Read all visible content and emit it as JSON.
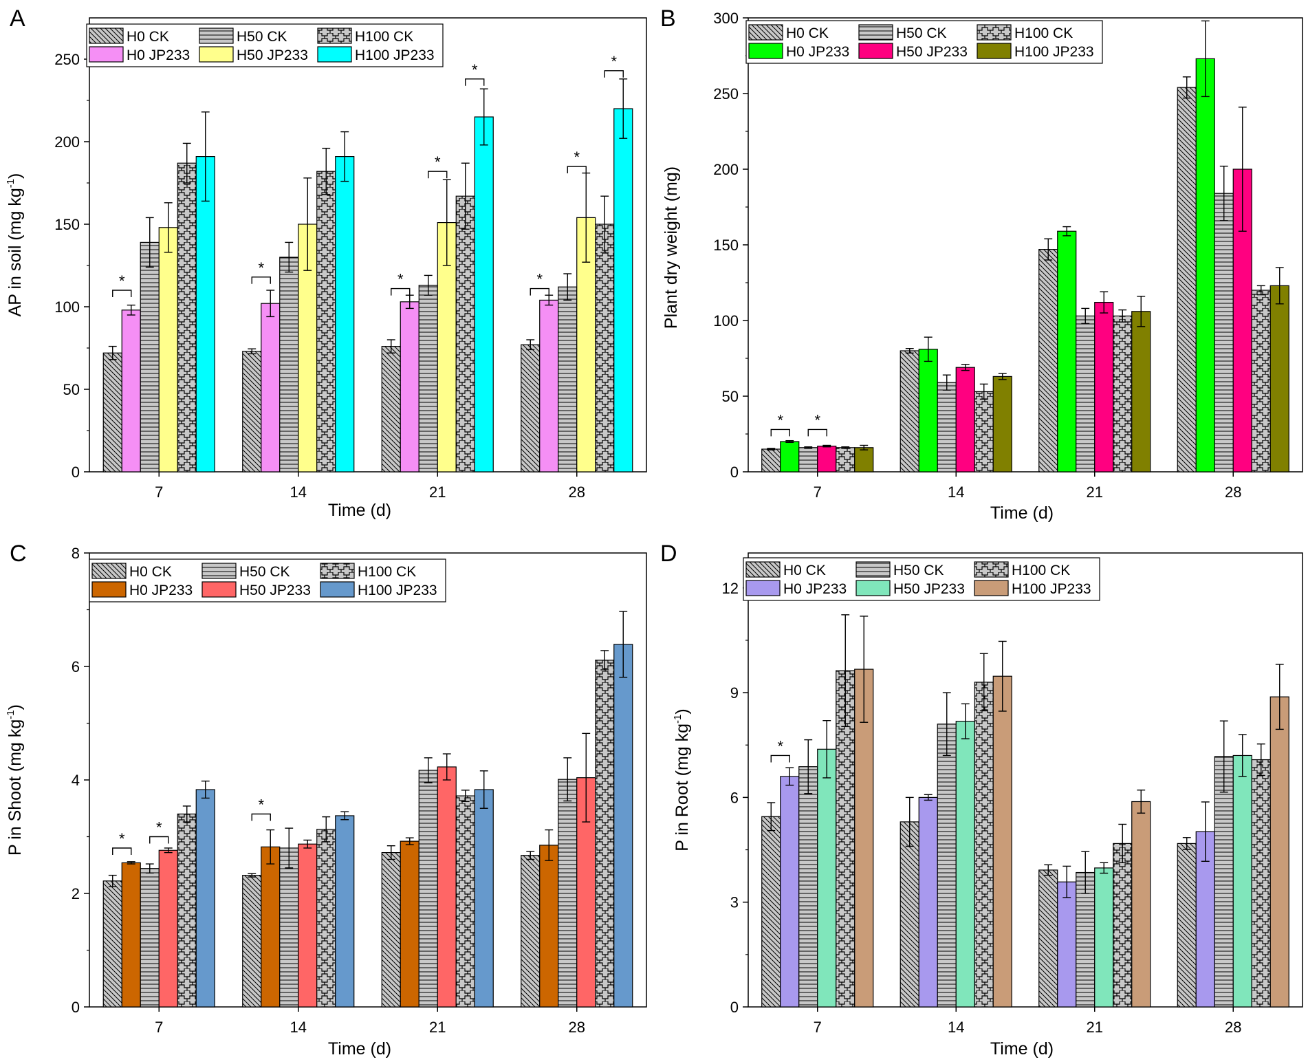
{
  "figure": {
    "legend_labels": [
      "H0 CK",
      "H50 CK",
      "H100 CK",
      "H0 JP233",
      "H50 JP233",
      "H100 JP233"
    ],
    "star": "*",
    "ck_fill": "#c8c8c8"
  },
  "chart_data": [
    {
      "panel": "A",
      "type": "bar",
      "xlabel": "Time (d)",
      "ylabel": "AP in soil (mg kg",
      "ylabel_sup": "-1",
      "ylabel_end": ")",
      "ylim": [
        0,
        275
      ],
      "yticks": [
        0,
        50,
        100,
        150,
        200,
        250
      ],
      "categories": [
        "7",
        "14",
        "21",
        "28"
      ],
      "jp_colors": [
        "#f58ff5",
        "#ffff8c",
        "#00ffff"
      ],
      "series": [
        {
          "name": "H0 CK",
          "values": [
            72,
            73,
            76,
            77
          ],
          "errors": [
            4,
            1.5,
            4,
            3
          ]
        },
        {
          "name": "H0 JP233",
          "values": [
            98,
            102,
            103,
            104
          ],
          "errors": [
            3,
            8,
            4,
            3
          ]
        },
        {
          "name": "H50 CK",
          "values": [
            139,
            130,
            113,
            112
          ],
          "errors": [
            15,
            9,
            6,
            8
          ]
        },
        {
          "name": "H50 JP233",
          "values": [
            148,
            150,
            151,
            154
          ],
          "errors": [
            15,
            28,
            26,
            27
          ]
        },
        {
          "name": "H100 CK",
          "values": [
            187,
            182,
            167,
            150
          ],
          "errors": [
            12,
            14,
            20,
            17
          ]
        },
        {
          "name": "H100 JP233",
          "values": [
            191,
            191,
            215,
            220
          ],
          "errors": [
            27,
            15,
            17,
            18
          ]
        }
      ],
      "significance": [
        {
          "category": 0,
          "pair": [
            0,
            1
          ],
          "at": 110
        },
        {
          "category": 1,
          "pair": [
            0,
            1
          ],
          "at": 118
        },
        {
          "category": 2,
          "pair": [
            0,
            1
          ],
          "at": 111
        },
        {
          "category": 2,
          "pair": [
            2,
            3
          ],
          "at": 182
        },
        {
          "category": 2,
          "pair": [
            4,
            5
          ],
          "at": 238
        },
        {
          "category": 3,
          "pair": [
            0,
            1
          ],
          "at": 111
        },
        {
          "category": 3,
          "pair": [
            2,
            3
          ],
          "at": 185
        },
        {
          "category": 3,
          "pair": [
            4,
            5
          ],
          "at": 243
        }
      ]
    },
    {
      "panel": "B",
      "type": "bar",
      "xlabel": "Time (d)",
      "ylabel": "Plant dry weight (mg)",
      "ylim": [
        0,
        300
      ],
      "yticks": [
        0,
        50,
        100,
        150,
        200,
        250,
        300
      ],
      "categories": [
        "7",
        "14",
        "21",
        "28"
      ],
      "jp_colors": [
        "#00ff00",
        "#ff0080",
        "#808000"
      ],
      "series": [
        {
          "name": "H0 CK",
          "values": [
            15,
            80,
            147,
            254
          ],
          "errors": [
            0.5,
            1.5,
            7,
            7
          ]
        },
        {
          "name": "H0 JP233",
          "values": [
            20,
            81,
            159,
            273
          ],
          "errors": [
            0.6,
            8,
            3,
            25
          ]
        },
        {
          "name": "H50 CK",
          "values": [
            16,
            59,
            103,
            184
          ],
          "errors": [
            0.5,
            5,
            5,
            18
          ]
        },
        {
          "name": "H50 JP233",
          "values": [
            17,
            69,
            112,
            200
          ],
          "errors": [
            0.5,
            2,
            7,
            41
          ]
        },
        {
          "name": "H100 CK",
          "values": [
            16,
            53,
            103,
            120
          ],
          "errors": [
            0.5,
            5,
            4,
            3
          ]
        },
        {
          "name": "H100 JP233",
          "values": [
            16,
            63,
            106,
            123
          ],
          "errors": [
            1.5,
            2,
            10,
            12
          ]
        }
      ],
      "significance": [
        {
          "category": 0,
          "pair": [
            0,
            1
          ],
          "at": 28
        },
        {
          "category": 0,
          "pair": [
            2,
            3
          ],
          "at": 28
        }
      ]
    },
    {
      "panel": "C",
      "type": "bar",
      "xlabel": "Time (d)",
      "ylabel": "P in Shoot (mg kg",
      "ylabel_sup": "-1",
      "ylabel_end": ")",
      "ylim": [
        0,
        8
      ],
      "yticks": [
        0,
        2,
        4,
        6,
        8
      ],
      "categories": [
        "7",
        "14",
        "21",
        "28"
      ],
      "jp_colors": [
        "#cc6600",
        "#ff6666",
        "#6699cc"
      ],
      "series": [
        {
          "name": "H0 CK",
          "values": [
            2.22,
            2.32,
            2.72,
            2.67
          ],
          "errors": [
            0.1,
            0.03,
            0.12,
            0.07
          ]
        },
        {
          "name": "H0 JP233",
          "values": [
            2.54,
            2.82,
            2.92,
            2.85
          ],
          "errors": [
            0.02,
            0.3,
            0.06,
            0.27
          ]
        },
        {
          "name": "H50 CK",
          "values": [
            2.44,
            2.8,
            4.17,
            4.01
          ],
          "errors": [
            0.08,
            0.35,
            0.22,
            0.38
          ]
        },
        {
          "name": "H50 JP233",
          "values": [
            2.76,
            2.87,
            4.23,
            4.04
          ],
          "errors": [
            0.04,
            0.07,
            0.23,
            0.78
          ]
        },
        {
          "name": "H100 CK",
          "values": [
            3.4,
            3.13,
            3.72,
            6.11
          ],
          "errors": [
            0.14,
            0.22,
            0.1,
            0.17
          ]
        },
        {
          "name": "H100 JP233",
          "values": [
            3.83,
            3.37,
            3.83,
            6.39
          ],
          "errors": [
            0.15,
            0.07,
            0.33,
            0.58
          ]
        }
      ],
      "significance": [
        {
          "category": 0,
          "pair": [
            0,
            1
          ],
          "at": 2.8
        },
        {
          "category": 0,
          "pair": [
            2,
            3
          ],
          "at": 3.0
        },
        {
          "category": 1,
          "pair": [
            0,
            1
          ],
          "at": 3.4
        }
      ]
    },
    {
      "panel": "D",
      "type": "bar",
      "xlabel": "Time (d)",
      "ylabel": "P in Root (mg kg",
      "ylabel_sup": "-1",
      "ylabel_end": ")",
      "ylim": [
        0,
        13
      ],
      "yticks": [
        0,
        3,
        6,
        9,
        12
      ],
      "categories": [
        "7",
        "14",
        "21",
        "28"
      ],
      "jp_colors": [
        "#a899ee",
        "#80e6bb",
        "#c99c78"
      ],
      "series": [
        {
          "name": "H0 CK",
          "values": [
            5.45,
            5.3,
            3.92,
            4.68
          ],
          "errors": [
            0.4,
            0.7,
            0.15,
            0.17
          ]
        },
        {
          "name": "H0 JP233",
          "values": [
            6.6,
            6.0,
            3.58,
            5.02
          ],
          "errors": [
            0.25,
            0.08,
            0.45,
            0.85
          ]
        },
        {
          "name": "H50 CK",
          "values": [
            6.88,
            8.1,
            3.85,
            7.17
          ],
          "errors": [
            0.77,
            0.9,
            0.6,
            1.02
          ]
        },
        {
          "name": "H50 JP233",
          "values": [
            7.38,
            8.18,
            3.98,
            7.2
          ],
          "errors": [
            0.82,
            0.5,
            0.15,
            0.6
          ]
        },
        {
          "name": "H100 CK",
          "values": [
            9.63,
            9.3,
            4.68,
            7.08
          ],
          "errors": [
            1.6,
            0.82,
            0.55,
            0.45
          ]
        },
        {
          "name": "H100 JP233",
          "values": [
            9.67,
            9.47,
            5.88,
            8.88
          ],
          "errors": [
            1.52,
            1.0,
            0.33,
            0.93
          ]
        }
      ],
      "significance": [
        {
          "category": 0,
          "pair": [
            0,
            1
          ],
          "at": 7.2
        }
      ]
    }
  ]
}
